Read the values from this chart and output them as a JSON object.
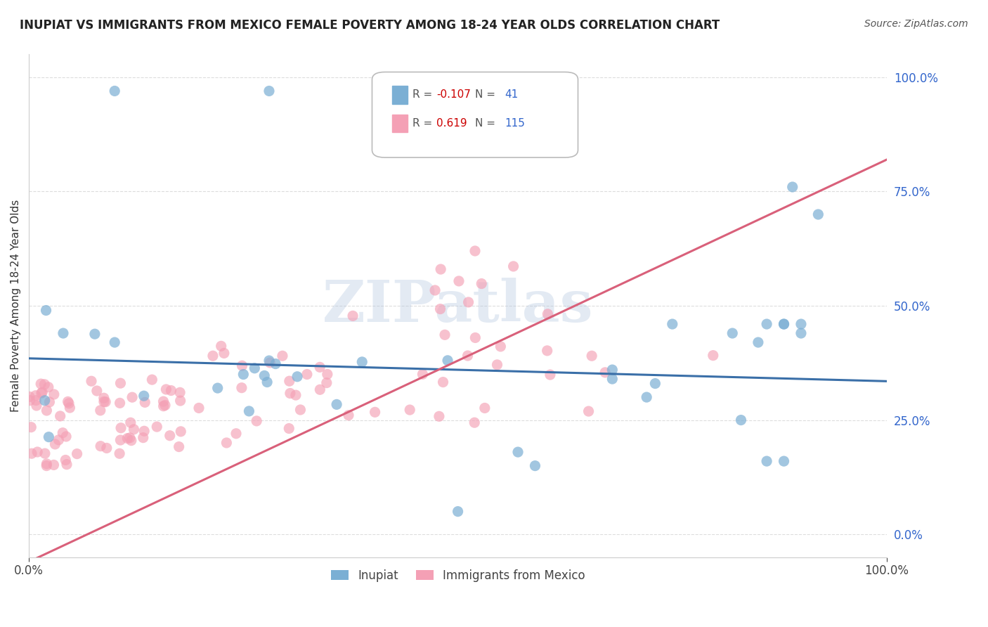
{
  "title": "INUPIAT VS IMMIGRANTS FROM MEXICO FEMALE POVERTY AMONG 18-24 YEAR OLDS CORRELATION CHART",
  "source": "Source: ZipAtlas.com",
  "ylabel": "Female Poverty Among 18-24 Year Olds",
  "xlim": [
    0,
    1.0
  ],
  "ylim": [
    -0.05,
    1.05
  ],
  "ytick_vals": [
    0,
    0.25,
    0.5,
    0.75,
    1.0
  ],
  "ytick_labels": [
    "0.0%",
    "25.0%",
    "50.0%",
    "75.0%",
    "100.0%"
  ],
  "xtick_vals": [
    0,
    1.0
  ],
  "xtick_labels": [
    "0.0%",
    "100.0%"
  ],
  "blue_color": "#7bafd4",
  "pink_color": "#f4a0b5",
  "blue_line_color": "#3a6fa8",
  "pink_line_color": "#d9607a",
  "blue_line_intercept": 0.385,
  "blue_line_slope": -0.05,
  "pink_line_intercept": -0.06,
  "pink_line_slope": 0.88,
  "watermark": "ZIPatlas",
  "inupiat_R": -0.107,
  "inupiat_N": 41,
  "mexico_R": 0.619,
  "mexico_N": 115,
  "background_color": "#ffffff",
  "grid_color": "#dddddd",
  "legend_R1": "-0.107",
  "legend_N1": "41",
  "legend_R2": "0.619",
  "legend_N2": "115",
  "legend_label1": "Inupiat",
  "legend_label2": "Immigrants from Mexico"
}
